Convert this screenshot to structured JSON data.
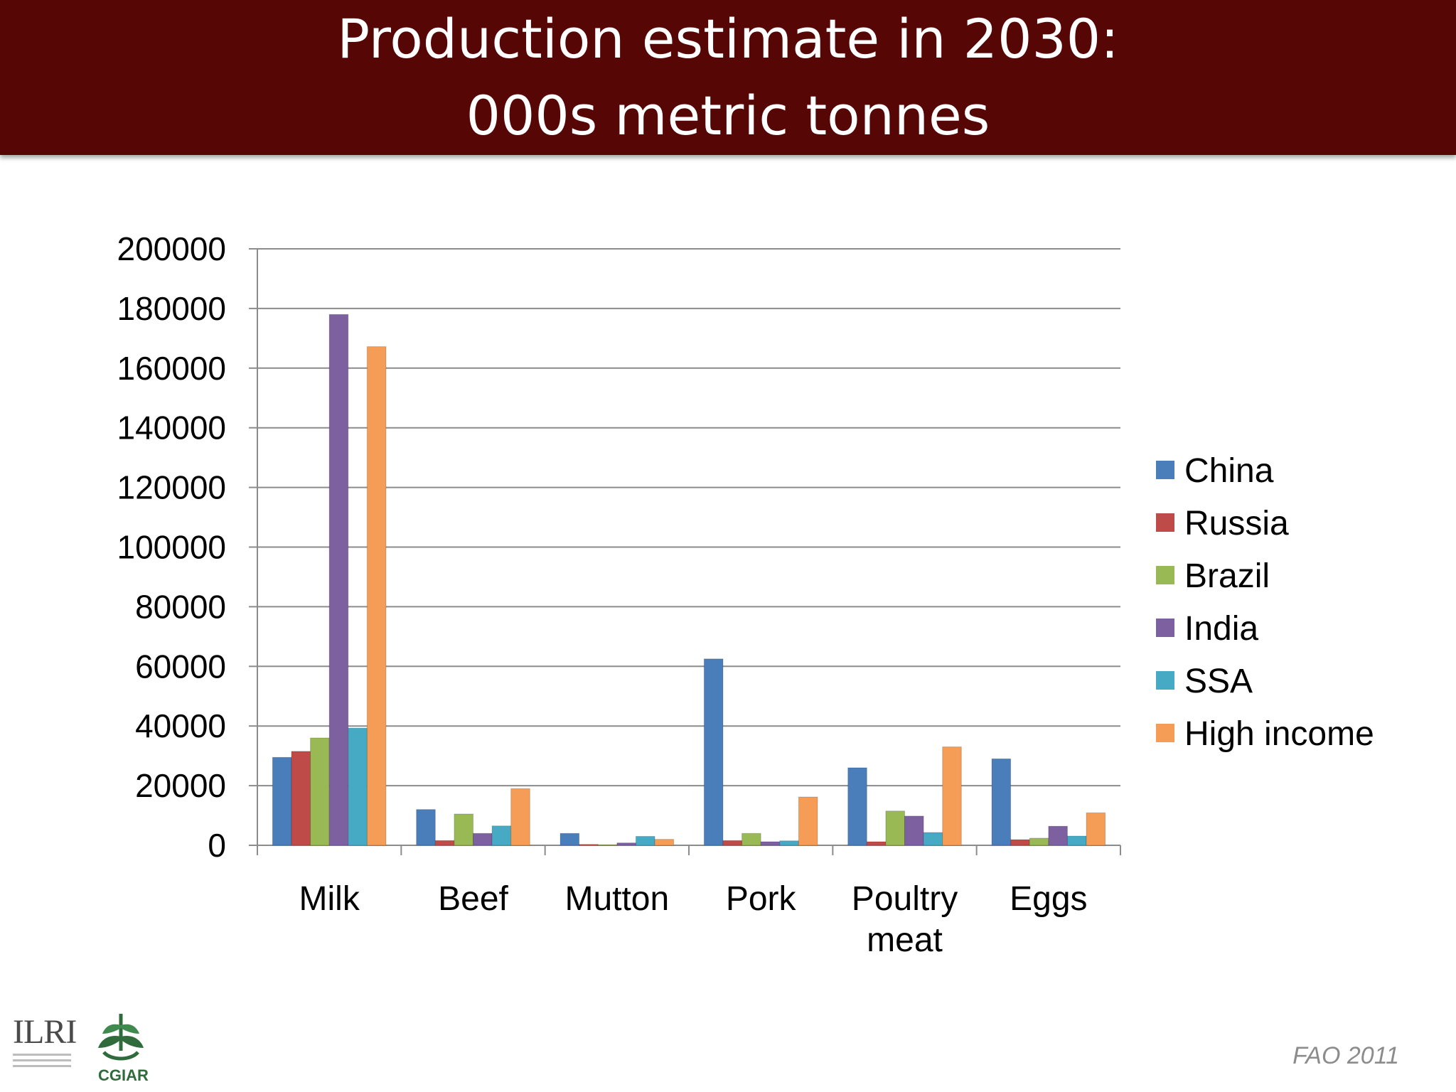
{
  "slide": {
    "title_line1": "Production estimate in 2030:",
    "title_line2": "000s metric tonnes",
    "source": "FAO 2011",
    "logos": {
      "ilri": "ILRI",
      "cgiar": "CGIAR"
    },
    "colors": {
      "title_bar": "#570606",
      "text": "#000000"
    }
  },
  "chart_data": {
    "type": "bar",
    "title": "",
    "xlabel": "",
    "ylabel": "",
    "ylim": [
      0,
      200000
    ],
    "yticks": [
      0,
      20000,
      40000,
      60000,
      80000,
      100000,
      120000,
      140000,
      160000,
      180000,
      200000
    ],
    "grid": true,
    "legend_position": "right",
    "categories": [
      "Milk",
      "Beef",
      "Mutton",
      "Pork",
      "Poultry meat",
      "Eggs"
    ],
    "series": [
      {
        "name": "China",
        "color": "#4a7ebb",
        "values": [
          29500,
          12000,
          4000,
          62500,
          26000,
          29000
        ]
      },
      {
        "name": "Russia",
        "color": "#be4b48",
        "values": [
          31500,
          1600,
          300,
          1600,
          1200,
          1900
        ]
      },
      {
        "name": "Brazil",
        "color": "#98b954",
        "values": [
          36000,
          10500,
          200,
          4000,
          11500,
          2400
        ]
      },
      {
        "name": "India",
        "color": "#7d60a0",
        "values": [
          178000,
          4000,
          800,
          1200,
          9800,
          6400
        ]
      },
      {
        "name": "SSA",
        "color": "#46aac5",
        "values": [
          39300,
          6500,
          3000,
          1500,
          4300,
          3100
        ]
      },
      {
        "name": "High income",
        "color": "#f59d56",
        "values": [
          167200,
          19000,
          2000,
          16200,
          33000,
          10900
        ]
      }
    ]
  }
}
